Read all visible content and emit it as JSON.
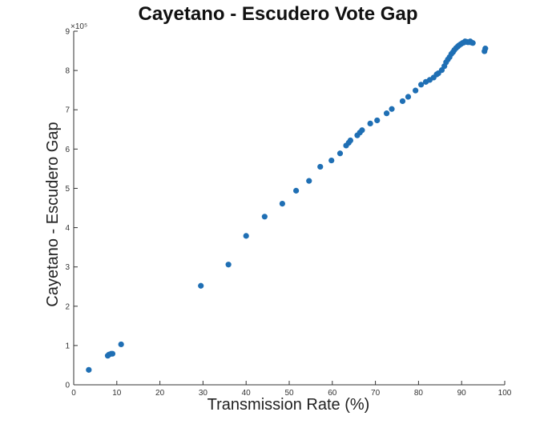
{
  "chart_data": {
    "type": "scatter",
    "title": "Cayetano - Escudero Vote Gap",
    "xlabel": "Transmission Rate (%)",
    "ylabel": "Cayetano - Escudero Gap",
    "y_multiplier": "×10⁵",
    "xlim": [
      0,
      100
    ],
    "ylim": [
      0,
      9
    ],
    "x_ticks": [
      "0",
      "10",
      "20",
      "30",
      "40",
      "50",
      "60",
      "70",
      "80",
      "90",
      "100"
    ],
    "y_ticks": [
      "0",
      "1",
      "2",
      "3",
      "4",
      "5",
      "6",
      "7",
      "8",
      "9"
    ],
    "grid": false,
    "marker_color": "#1f6fb4",
    "series": [
      {
        "x": [
          3.5,
          7.9,
          8.2,
          8.7,
          9.0,
          11.0,
          29.5,
          35.9,
          40.0,
          44.3,
          48.4,
          51.6,
          54.6,
          57.2,
          59.8,
          61.8,
          63.2,
          63.8,
          64.2,
          65.8,
          66.4,
          66.9,
          68.8,
          70.4,
          72.6,
          73.8,
          76.3,
          77.6,
          79.3,
          80.6,
          81.7,
          82.6,
          83.5,
          84.2,
          84.6,
          85.4,
          86.0,
          86.4,
          86.8,
          87.2,
          87.6,
          88.0,
          88.3,
          88.7,
          89.1,
          89.4,
          89.8,
          90.2,
          90.5,
          90.8,
          91.1,
          91.4,
          91.7,
          92.0,
          92.3,
          92.6,
          95.3,
          95.5
        ],
        "y": [
          0.38,
          0.74,
          0.77,
          0.79,
          0.79,
          1.03,
          2.52,
          3.06,
          3.79,
          4.28,
          4.61,
          4.94,
          5.19,
          5.55,
          5.71,
          5.89,
          6.09,
          6.16,
          6.22,
          6.35,
          6.42,
          6.48,
          6.65,
          6.73,
          6.91,
          7.02,
          7.22,
          7.33,
          7.49,
          7.64,
          7.71,
          7.76,
          7.82,
          7.9,
          7.93,
          8.01,
          8.11,
          8.21,
          8.28,
          8.34,
          8.42,
          8.47,
          8.52,
          8.57,
          8.61,
          8.64,
          8.67,
          8.7,
          8.71,
          8.74,
          8.73,
          8.72,
          8.72,
          8.74,
          8.71,
          8.7,
          8.49,
          8.56
        ]
      }
    ]
  }
}
